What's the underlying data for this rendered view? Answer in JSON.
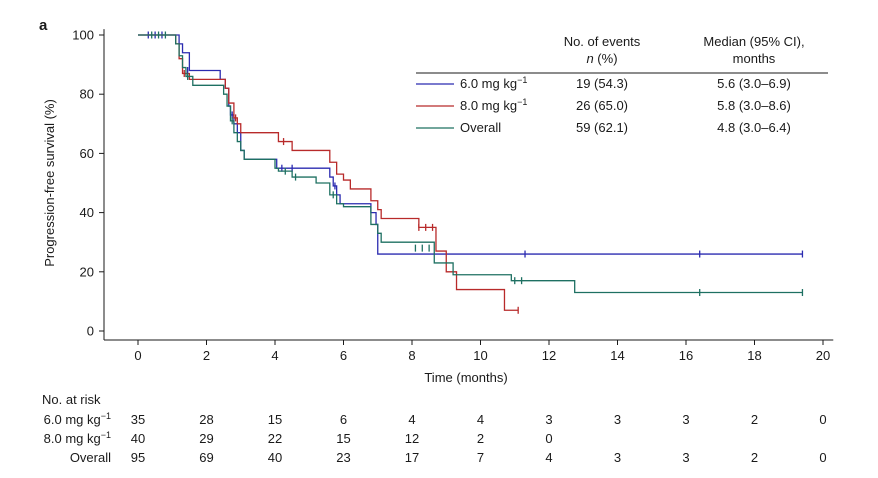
{
  "chart_data": {
    "type": "line",
    "subtype": "kaplan-meier",
    "panel_label": "a",
    "title": "",
    "xlabel": "Time (months)",
    "ylabel": "Progression-free survival (%)",
    "xlim": [
      -1.1,
      20.3
    ],
    "ylim": [
      -3,
      102
    ],
    "xticks": [
      0,
      2,
      4,
      6,
      8,
      10,
      12,
      14,
      16,
      18,
      20
    ],
    "yticks": [
      0,
      20,
      40,
      60,
      80,
      100
    ],
    "legend_header": {
      "events_line1": "No. of events",
      "events_line2_italic": "n",
      "events_line2_rest": " (%)",
      "median_line1": "Median (95% CI),",
      "median_line2": "months"
    },
    "series": [
      {
        "name": "6.0 mg kg-1",
        "label_base": "6.0 mg kg",
        "label_sup": "−1",
        "color": "#2b2bb0",
        "events": "19 (54.3)",
        "median": "5.6 (3.0–6.9)",
        "steps": [
          [
            0,
            100
          ],
          [
            1.1,
            100
          ],
          [
            1.2,
            97
          ],
          [
            1.3,
            94
          ],
          [
            1.5,
            88
          ],
          [
            2.2,
            88
          ],
          [
            2.4,
            85
          ],
          [
            2.55,
            82
          ],
          [
            2.65,
            76
          ],
          [
            2.7,
            73
          ],
          [
            2.8,
            70
          ],
          [
            2.9,
            67
          ],
          [
            3.0,
            61
          ],
          [
            3.1,
            58
          ],
          [
            4.0,
            58
          ],
          [
            4.05,
            55
          ],
          [
            5.5,
            55
          ],
          [
            5.6,
            52
          ],
          [
            5.7,
            49
          ],
          [
            5.8,
            46
          ],
          [
            5.9,
            43
          ],
          [
            6.7,
            43
          ],
          [
            6.8,
            40
          ],
          [
            6.95,
            36
          ],
          [
            7.0,
            26
          ],
          [
            8.6,
            26
          ],
          [
            19.4,
            26
          ]
        ],
        "censor": [
          [
            0.3,
            100
          ],
          [
            0.5,
            100
          ],
          [
            0.7,
            100
          ],
          [
            1.45,
            88
          ],
          [
            2.75,
            73
          ],
          [
            4.2,
            55
          ],
          [
            4.5,
            55
          ],
          [
            5.75,
            49
          ],
          [
            11.3,
            26
          ],
          [
            16.4,
            26
          ],
          [
            19.4,
            26
          ]
        ]
      },
      {
        "name": "8.0 mg kg-1",
        "label_base": "8.0 mg kg",
        "label_sup": "−1",
        "color": "#b82a2a",
        "events": "26 (65.0)",
        "median": "5.8 (3.0–8.6)",
        "steps": [
          [
            0,
            100
          ],
          [
            1.05,
            100
          ],
          [
            1.1,
            97
          ],
          [
            1.2,
            92
          ],
          [
            1.3,
            87
          ],
          [
            1.5,
            85
          ],
          [
            2.4,
            85
          ],
          [
            2.55,
            82
          ],
          [
            2.65,
            77
          ],
          [
            2.8,
            72
          ],
          [
            2.9,
            70
          ],
          [
            3.0,
            67
          ],
          [
            4.0,
            67
          ],
          [
            4.1,
            64
          ],
          [
            4.4,
            64
          ],
          [
            4.5,
            61
          ],
          [
            5.5,
            61
          ],
          [
            5.6,
            57
          ],
          [
            5.8,
            53
          ],
          [
            6.0,
            51
          ],
          [
            6.2,
            48
          ],
          [
            6.7,
            48
          ],
          [
            6.8,
            44
          ],
          [
            7.0,
            41
          ],
          [
            7.1,
            38
          ],
          [
            8.0,
            38
          ],
          [
            8.2,
            35
          ],
          [
            8.6,
            35
          ],
          [
            8.7,
            27
          ],
          [
            9.0,
            20
          ],
          [
            9.3,
            14
          ],
          [
            10.5,
            14
          ],
          [
            10.7,
            7
          ],
          [
            11.1,
            7
          ]
        ],
        "censor": [
          [
            1.35,
            87
          ],
          [
            2.85,
            72
          ],
          [
            4.25,
            64
          ],
          [
            8.2,
            35
          ],
          [
            8.4,
            35
          ],
          [
            8.6,
            35
          ],
          [
            11.1,
            7
          ]
        ]
      },
      {
        "name": "Overall",
        "label_base": "Overall",
        "label_sup": "",
        "color": "#1e7062",
        "events": "59 (62.1)",
        "median": "4.8 (3.0–6.4)",
        "steps": [
          [
            0,
            100
          ],
          [
            1.0,
            100
          ],
          [
            1.1,
            97
          ],
          [
            1.2,
            93
          ],
          [
            1.3,
            89
          ],
          [
            1.4,
            86
          ],
          [
            1.6,
            83
          ],
          [
            2.4,
            83
          ],
          [
            2.5,
            80
          ],
          [
            2.6,
            76
          ],
          [
            2.7,
            71
          ],
          [
            2.8,
            67
          ],
          [
            2.9,
            64
          ],
          [
            3.0,
            61
          ],
          [
            3.1,
            58
          ],
          [
            3.9,
            58
          ],
          [
            4.0,
            55
          ],
          [
            4.1,
            54
          ],
          [
            4.4,
            54
          ],
          [
            4.5,
            52
          ],
          [
            5.0,
            52
          ],
          [
            5.2,
            50
          ],
          [
            5.5,
            50
          ],
          [
            5.6,
            46
          ],
          [
            5.8,
            43
          ],
          [
            6.0,
            42
          ],
          [
            6.7,
            42
          ],
          [
            6.8,
            36
          ],
          [
            7.0,
            33
          ],
          [
            7.1,
            30
          ],
          [
            8.6,
            30
          ],
          [
            8.65,
            23
          ],
          [
            9.1,
            23
          ],
          [
            9.2,
            19
          ],
          [
            10.8,
            19
          ],
          [
            10.9,
            17
          ],
          [
            12.7,
            17
          ],
          [
            12.75,
            13
          ],
          [
            19.4,
            13
          ]
        ],
        "censor": [
          [
            0.4,
            100
          ],
          [
            0.6,
            100
          ],
          [
            0.8,
            100
          ],
          [
            1.45,
            86
          ],
          [
            2.75,
            71
          ],
          [
            4.3,
            54
          ],
          [
            4.6,
            52
          ],
          [
            5.7,
            46
          ],
          [
            8.1,
            28
          ],
          [
            8.3,
            28
          ],
          [
            8.5,
            28
          ],
          [
            11.0,
            17
          ],
          [
            11.2,
            17
          ],
          [
            16.4,
            13
          ],
          [
            19.4,
            13
          ]
        ]
      }
    ],
    "risk_table": {
      "title": "No. at risk",
      "times": [
        0,
        2,
        4,
        6,
        8,
        10,
        12,
        14,
        16,
        18,
        20
      ],
      "rows": [
        {
          "label_base": "6.0 mg kg",
          "label_sup": "−1",
          "values": [
            "35",
            "28",
            "15",
            "6",
            "4",
            "4",
            "3",
            "3",
            "3",
            "2",
            "0"
          ]
        },
        {
          "label_base": "8.0 mg kg",
          "label_sup": "−1",
          "values": [
            "40",
            "29",
            "22",
            "15",
            "12",
            "2",
            "0",
            "",
            "",
            "",
            ""
          ]
        },
        {
          "label_base": "Overall",
          "label_sup": "",
          "values": [
            "95",
            "69",
            "40",
            "23",
            "17",
            "7",
            "4",
            "3",
            "3",
            "2",
            "0"
          ]
        }
      ]
    }
  }
}
